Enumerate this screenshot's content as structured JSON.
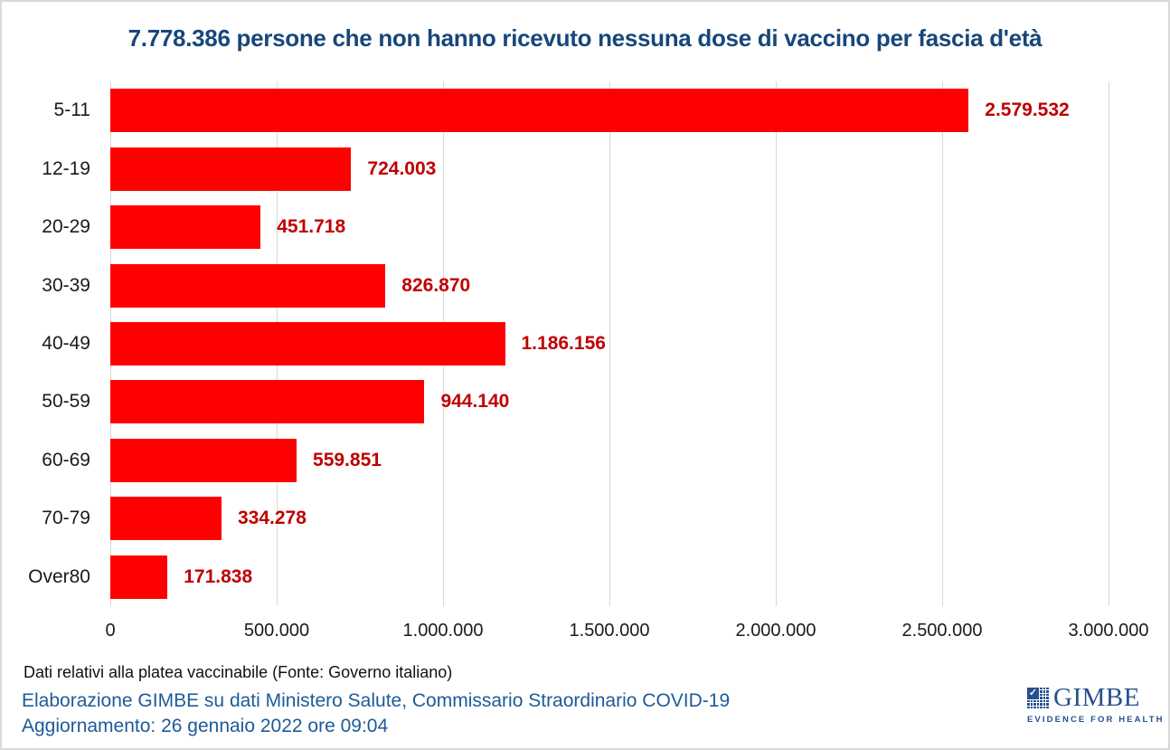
{
  "title": {
    "text": "7.778.386 persone che non hanno ricevuto nessuna dose di vaccino per fascia d'età",
    "color": "#17477A"
  },
  "chart_data": {
    "type": "bar",
    "orientation": "horizontal",
    "title": "7.778.386 persone che non hanno ricevuto nessuna dose di vaccino per fascia d'età",
    "categories": [
      "5-11",
      "12-19",
      "20-29",
      "30-39",
      "40-49",
      "50-59",
      "60-69",
      "70-79",
      "Over80"
    ],
    "values": [
      2579532,
      724003,
      451718,
      826870,
      1186156,
      944140,
      559851,
      334278,
      171838
    ],
    "value_labels": [
      "2.579.532",
      "724.003",
      "451.718",
      "826.870",
      "1.186.156",
      "944.140",
      "559.851",
      "334.278",
      "171.838"
    ],
    "xlabel": "",
    "ylabel": "",
    "xlim": [
      0,
      3000000
    ],
    "x_ticks": [
      0,
      500000,
      1000000,
      1500000,
      2000000,
      2500000,
      3000000
    ],
    "x_tick_labels": [
      "0",
      "500.000",
      "1.000.000",
      "1.500.000",
      "2.000.000",
      "2.500.000",
      "3.000.000"
    ],
    "grid": "vertical",
    "legend": "none",
    "bar_color": "#FF0000",
    "value_label_color": "#C00000",
    "gridline_color": "#D9D9D9"
  },
  "footer": {
    "source_note": "Dati relativi alla platea vaccinabile (Fonte: Governo italiano)",
    "elaboration": "Elaborazione GIMBE su dati Ministero Salute, Commissario Straordinario COVID-19",
    "update": "Aggiornamento: 26 gennaio 2022 ore 09:04"
  },
  "logo": {
    "name": "GIMBE",
    "tagline": "EVIDENCE FOR HEALTH",
    "check_glyph": "✓",
    "color": "#26508E"
  }
}
